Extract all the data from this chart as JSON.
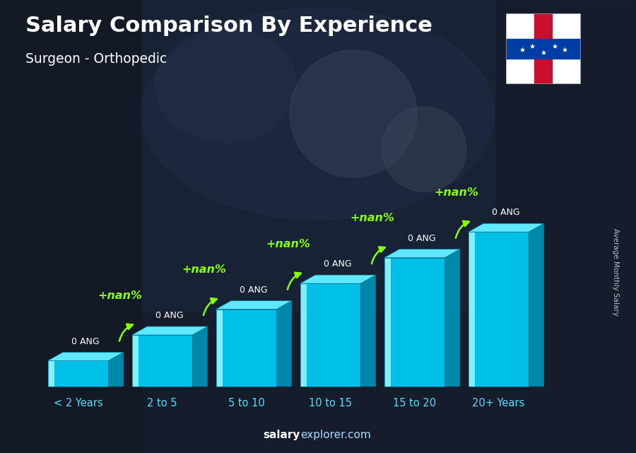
{
  "title": "Salary Comparison By Experience",
  "subtitle": "Surgeon - Orthopedic",
  "ylabel": "Average Monthly Salary",
  "xlabel_labels": [
    "< 2 Years",
    "2 to 5",
    "5 to 10",
    "10 to 15",
    "15 to 20",
    "20+ Years"
  ],
  "bar_heights": [
    1,
    2,
    3,
    4,
    5,
    6
  ],
  "value_labels": [
    "0 ANG",
    "0 ANG",
    "0 ANG",
    "0 ANG",
    "0 ANG",
    "0 ANG"
  ],
  "pct_labels": [
    "+nan%",
    "+nan%",
    "+nan%",
    "+nan%",
    "+nan%"
  ],
  "footer_left": "salary",
  "footer_right": "explorer.com",
  "bar_front_color": "#00c0e8",
  "bar_top_color": "#60e8ff",
  "bar_side_color": "#0088aa",
  "bar_highlight_color": "#80f0ff",
  "title_color": "#ffffff",
  "subtitle_color": "#ffffff",
  "value_color": "#ffffff",
  "pct_color": "#88ff00",
  "arrow_color": "#88ff00",
  "xlabel_color": "#55ddff",
  "ylabel_color": "#cccccc",
  "bg_dark": "#1a2035",
  "footer_left_color": "#ffffff",
  "footer_right_color": "#aaddff"
}
